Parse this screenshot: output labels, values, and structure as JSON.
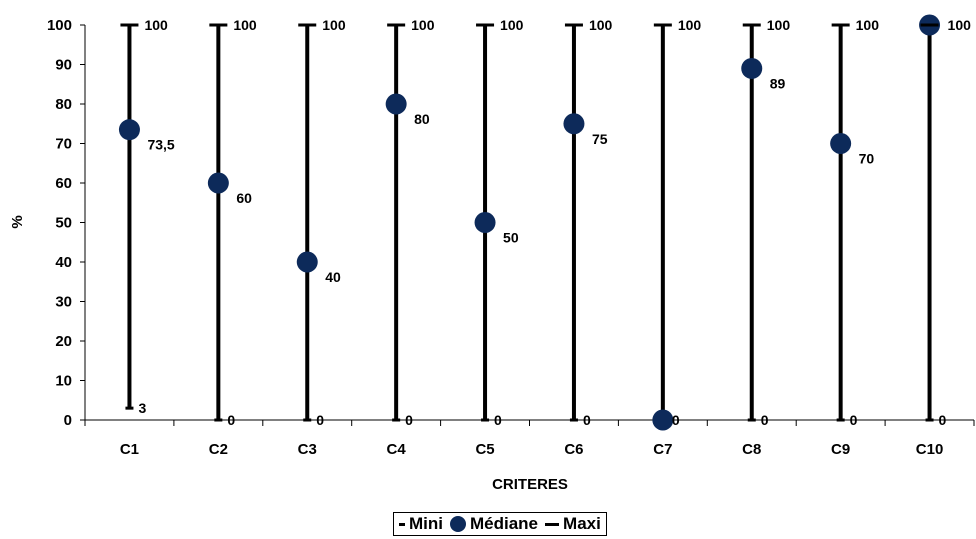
{
  "chart_data": {
    "type": "scatter",
    "categories": [
      "C1",
      "C2",
      "C3",
      "C4",
      "C5",
      "C6",
      "C7",
      "C8",
      "C9",
      "C10"
    ],
    "series": [
      {
        "name": "Mini",
        "values": [
          3,
          0,
          0,
          0,
          0,
          0,
          0,
          0,
          0,
          0
        ]
      },
      {
        "name": "Médiane",
        "values": [
          73.5,
          60,
          40,
          80,
          50,
          75,
          0,
          89,
          70,
          100
        ]
      },
      {
        "name": "Maxi",
        "values": [
          100,
          100,
          100,
          100,
          100,
          100,
          100,
          100,
          100,
          100
        ]
      }
    ],
    "labels": {
      "mini": [
        "3",
        "0",
        "0",
        "0",
        "0",
        "0",
        "0",
        "0",
        "0",
        "0"
      ],
      "median": [
        "73,5",
        "60",
        "40",
        "80",
        "50",
        "75",
        "0",
        "89",
        "70",
        "100"
      ],
      "maxi": [
        "100",
        "100",
        "100",
        "100",
        "100",
        "100",
        "100",
        "100",
        "100",
        ""
      ]
    },
    "xlabel": "CRITERES",
    "ylabel": "%",
    "ylim": [
      0,
      100
    ],
    "yticks": [
      0,
      10,
      20,
      30,
      40,
      50,
      60,
      70,
      80,
      90,
      100
    ],
    "grid": false,
    "legend_position": "bottom",
    "colors": {
      "median_marker": "#0d2a5a",
      "range_line": "#000000"
    }
  },
  "legend": {
    "mini": "Mini",
    "median": "Médiane",
    "maxi": "Maxi"
  }
}
